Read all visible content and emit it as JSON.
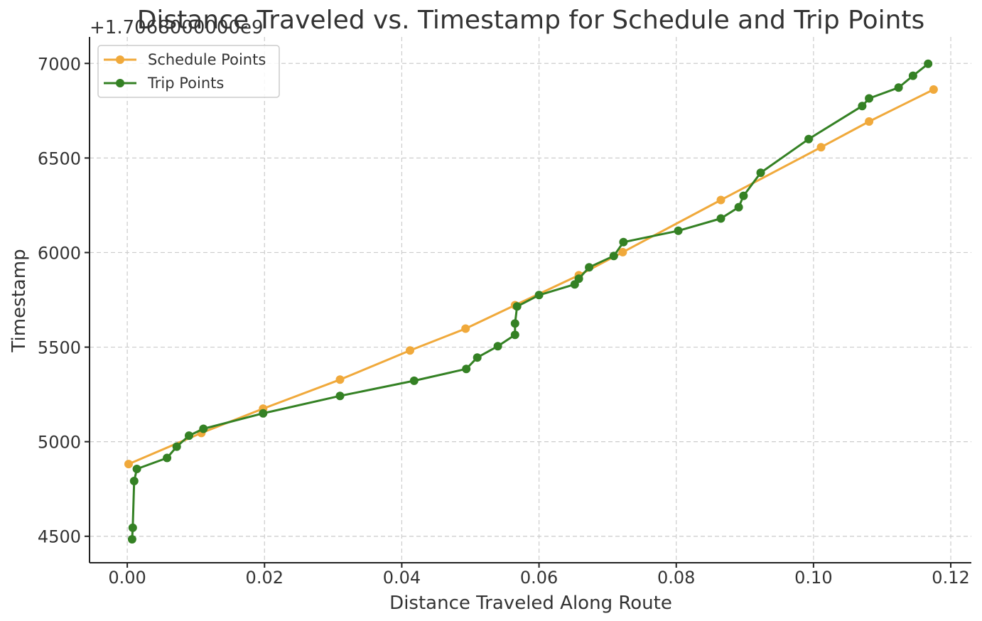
{
  "chart_data": {
    "type": "line",
    "title": "Distance Traveled vs. Timestamp for Schedule and Trip Points",
    "xlabel": "Distance Traveled Along Route",
    "ylabel": "Timestamp",
    "y_offset_label": "+1.7068000000e9",
    "xlim": [
      -0.0055,
      0.123
    ],
    "ylim": [
      4360,
      7140
    ],
    "x_ticks": [
      0.0,
      0.02,
      0.04,
      0.06,
      0.08,
      0.1,
      0.12
    ],
    "x_tick_labels": [
      "0.00",
      "0.02",
      "0.04",
      "0.06",
      "0.08",
      "0.10",
      "0.12"
    ],
    "y_ticks": [
      4500,
      5000,
      5500,
      6000,
      6500,
      7000
    ],
    "y_tick_labels": [
      "4500",
      "5000",
      "5500",
      "6000",
      "6500",
      "7000"
    ],
    "grid": true,
    "legend_position": "top-left",
    "series": [
      {
        "name": "Schedule Points",
        "color": "#f0a93b",
        "points": [
          [
            0.0002,
            4882
          ],
          [
            0.0108,
            5046
          ],
          [
            0.0198,
            5175
          ],
          [
            0.031,
            5328
          ],
          [
            0.0412,
            5482
          ],
          [
            0.0493,
            5598
          ],
          [
            0.0565,
            5722
          ],
          [
            0.0658,
            5880
          ],
          [
            0.0722,
            6002
          ],
          [
            0.0865,
            6278
          ],
          [
            0.1011,
            6557
          ],
          [
            0.1081,
            6693
          ],
          [
            0.1175,
            6862
          ]
        ]
      },
      {
        "name": "Trip Points",
        "color": "#348124",
        "points": [
          [
            0.0007,
            4484
          ],
          [
            0.0008,
            4545
          ],
          [
            0.001,
            4792
          ],
          [
            0.0014,
            4856
          ],
          [
            0.0058,
            4914
          ],
          [
            0.0072,
            4974
          ],
          [
            0.009,
            5032
          ],
          [
            0.0111,
            5068
          ],
          [
            0.0198,
            5150
          ],
          [
            0.031,
            5242
          ],
          [
            0.0418,
            5322
          ],
          [
            0.0494,
            5385
          ],
          [
            0.051,
            5445
          ],
          [
            0.054,
            5505
          ],
          [
            0.0565,
            5565
          ],
          [
            0.0565,
            5625
          ],
          [
            0.0568,
            5715
          ],
          [
            0.06,
            5775
          ],
          [
            0.0652,
            5832
          ],
          [
            0.0658,
            5862
          ],
          [
            0.0673,
            5922
          ],
          [
            0.0709,
            5982
          ],
          [
            0.0723,
            6055
          ],
          [
            0.0803,
            6115
          ],
          [
            0.0865,
            6180
          ],
          [
            0.0891,
            6240
          ],
          [
            0.0898,
            6300
          ],
          [
            0.0923,
            6422
          ],
          [
            0.0993,
            6600
          ],
          [
            0.1071,
            6775
          ],
          [
            0.1081,
            6815
          ],
          [
            0.1124,
            6872
          ],
          [
            0.1145,
            6935
          ],
          [
            0.1167,
            6998
          ]
        ]
      }
    ]
  }
}
